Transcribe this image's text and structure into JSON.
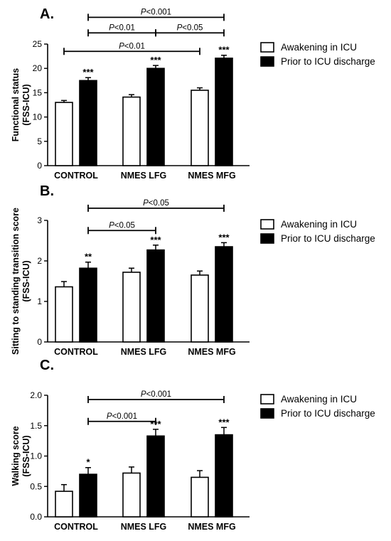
{
  "colors": {
    "series_0": "#ffffff",
    "series_1": "#000000",
    "line": "#000000"
  },
  "chart_data": [
    {
      "type": "bar",
      "panel_label": "A.",
      "ylabel": "Functional status (FSS-ICU)",
      "ylabel_lines": [
        "Functional status",
        "(FSS-ICU)"
      ],
      "ylim": [
        0,
        25
      ],
      "yticks": [
        "0",
        "5",
        "10",
        "15",
        "20",
        "25"
      ],
      "categories": [
        "CONTROL",
        "NMES LFG",
        "NMES MFG"
      ],
      "series": [
        {
          "name": "Awakening in ICU",
          "values": [
            13.0,
            14.1,
            15.5
          ],
          "errors": [
            0.4,
            0.5,
            0.5
          ]
        },
        {
          "name": "Prior to ICU discharge",
          "values": [
            17.5,
            20.0,
            22.1
          ],
          "errors": [
            0.6,
            0.6,
            0.6
          ]
        }
      ],
      "stars": [
        [
          "",
          "***"
        ],
        [
          "",
          "***"
        ],
        [
          "",
          "***"
        ]
      ],
      "brackets": [
        {
          "text": "P<0.001",
          "p": "P",
          "rest": "<0.001",
          "from": [
            0,
            1
          ],
          "to": [
            2,
            1
          ],
          "level": 30.5
        },
        {
          "text": "P<0.01",
          "p": "P",
          "rest": "<0.01",
          "from": [
            0,
            1
          ],
          "to": [
            1,
            1
          ],
          "level": 27.3
        },
        {
          "text": "P<0.05",
          "p": "P",
          "rest": "<0.05",
          "from": [
            1,
            1
          ],
          "to": [
            2,
            1
          ],
          "level": 27.3
        },
        {
          "text": "P<0.01",
          "p": "P",
          "rest": "<0.01",
          "from": [
            0,
            0
          ],
          "to": [
            2,
            0
          ],
          "level": 23.5
        }
      ],
      "legend": {
        "placement": "top-right",
        "entries": [
          "Awakening in ICU",
          "Prior to ICU discharge"
        ]
      }
    },
    {
      "type": "bar",
      "panel_label": "B.",
      "ylabel": "Sitting to standing transition score (FSS-ICU)",
      "ylabel_lines": [
        "Sitting to standing transition score",
        "(FSS-ICU)"
      ],
      "ylim": [
        0,
        3
      ],
      "yticks": [
        "0",
        "1",
        "2",
        "3"
      ],
      "categories": [
        "CONTROL",
        "NMES LFG",
        "NMES MFG"
      ],
      "series": [
        {
          "name": "Awakening in ICU",
          "values": [
            1.36,
            1.72,
            1.65
          ],
          "errors": [
            0.13,
            0.1,
            0.1
          ]
        },
        {
          "name": "Prior to ICU discharge",
          "values": [
            1.82,
            2.27,
            2.35
          ],
          "errors": [
            0.15,
            0.12,
            0.1
          ]
        }
      ],
      "stars": [
        [
          "",
          "**"
        ],
        [
          "",
          "***"
        ],
        [
          "",
          "***"
        ]
      ],
      "brackets": [
        {
          "text": "P<0.05",
          "p": "P",
          "rest": "<0.05",
          "from": [
            0,
            1
          ],
          "to": [
            2,
            1
          ],
          "level": 3.3
        },
        {
          "text": "P<0.05",
          "p": "P",
          "rest": "<0.05",
          "from": [
            0,
            1
          ],
          "to": [
            1,
            1
          ],
          "level": 2.75
        }
      ],
      "legend": {
        "placement": "top-right",
        "entries": [
          "Awakening in ICU",
          "Prior to ICU discharge"
        ]
      }
    },
    {
      "type": "bar",
      "panel_label": "C.",
      "ylabel": "Walking score (FSS-ICU)",
      "ylabel_lines": [
        "Walking score",
        "(FSS-ICU)"
      ],
      "ylim": [
        0,
        2.0
      ],
      "yticks": [
        "0.0",
        "0.5",
        "1.0",
        "1.5",
        "2.0"
      ],
      "categories": [
        "CONTROL",
        "NMES LFG",
        "NMES MFG"
      ],
      "series": [
        {
          "name": "Awakening in ICU",
          "values": [
            0.42,
            0.72,
            0.65
          ],
          "errors": [
            0.11,
            0.1,
            0.11
          ]
        },
        {
          "name": "Prior to ICU discharge",
          "values": [
            0.7,
            1.33,
            1.35
          ],
          "errors": [
            0.11,
            0.11,
            0.12
          ]
        }
      ],
      "stars": [
        [
          "",
          "*"
        ],
        [
          "",
          "***"
        ],
        [
          "",
          "***"
        ]
      ],
      "brackets": [
        {
          "text": "P<0.001",
          "p": "P",
          "rest": "<0.001",
          "from": [
            0,
            1
          ],
          "to": [
            2,
            1
          ],
          "level": 1.93
        },
        {
          "text": "P<0.001",
          "p": "P",
          "rest": "<0.001",
          "from": [
            0,
            1
          ],
          "to": [
            1,
            1
          ],
          "level": 1.57
        }
      ],
      "legend": {
        "placement": "top-right",
        "entries": [
          "Awakening in ICU",
          "Prior to ICU discharge"
        ]
      }
    }
  ]
}
